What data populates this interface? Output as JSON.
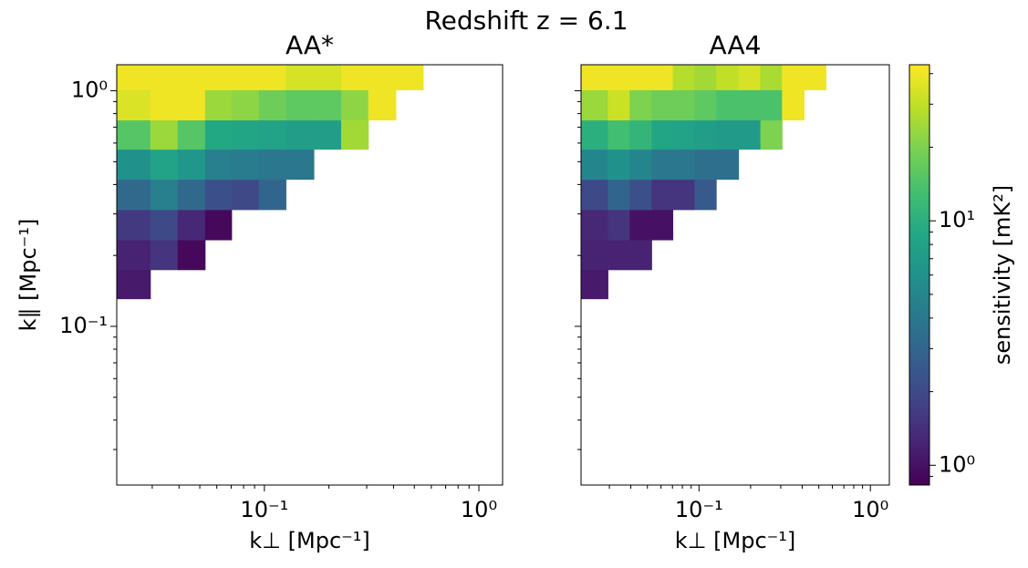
{
  "suptitle": "Redshift z = 6.1",
  "chart_data": [
    {
      "type": "heatmap",
      "title": "AA*",
      "xlabel": "k⊥ [Mpc⁻¹]",
      "ylabel": "k∥ [Mpc⁻¹]",
      "xscale": "log",
      "yscale": "log",
      "xlim": [
        0.0205,
        1.29
      ],
      "ylim": [
        0.0212,
        1.29
      ],
      "xticks": [
        {
          "value": 0.1,
          "label": "10⁻¹"
        },
        {
          "value": 1,
          "label": "10⁰"
        }
      ],
      "yticks": [
        {
          "value": 0.1,
          "label": "10⁻¹"
        },
        {
          "value": 1,
          "label": "10⁰"
        }
      ],
      "xminorticks": [
        0.03,
        0.04,
        0.05,
        0.06,
        0.07,
        0.08,
        0.09,
        0.2,
        0.3,
        0.4,
        0.5,
        0.6,
        0.7,
        0.8,
        0.9
      ],
      "yminorticks": [
        0.03,
        0.04,
        0.05,
        0.06,
        0.07,
        0.08,
        0.09,
        0.2,
        0.3,
        0.4,
        0.5,
        0.6,
        0.7,
        0.8,
        0.9
      ],
      "x_edges": [
        0.0205,
        0.0294,
        0.0394,
        0.0529,
        0.0703,
        0.0942,
        0.126,
        0.17,
        0.228,
        0.305,
        0.41,
        0.55
      ],
      "y_edges": [
        0.131,
        0.174,
        0.233,
        0.313,
        0.421,
        0.565,
        0.752,
        1.01,
        1.29
      ],
      "values": [
        [
          1.1,
          null,
          null,
          null,
          null,
          null,
          null,
          null,
          null,
          null,
          null
        ],
        [
          1.2,
          1.5,
          0.9,
          null,
          null,
          null,
          null,
          null,
          null,
          null,
          null
        ],
        [
          1.6,
          2,
          1.3,
          0.9,
          null,
          null,
          null,
          null,
          null,
          null,
          null
        ],
        [
          3.2,
          4.5,
          3.2,
          2.2,
          2,
          3,
          null,
          null,
          null,
          null,
          null
        ],
        [
          6,
          8,
          6.5,
          4.5,
          4.3,
          4,
          4,
          null,
          null,
          null,
          null
        ],
        [
          15,
          24,
          15,
          9,
          8.5,
          8,
          7.5,
          7.5,
          25,
          null,
          null
        ],
        [
          35,
          40,
          40,
          24,
          22,
          18,
          16,
          16,
          22,
          40,
          null
        ],
        [
          40,
          40,
          40,
          40,
          40,
          40,
          34,
          34,
          40,
          40,
          40
        ]
      ]
    },
    {
      "type": "heatmap",
      "title": "AA4",
      "xlabel": "k⊥ [Mpc⁻¹]",
      "xscale": "log",
      "yscale": "log",
      "xlim": [
        0.0205,
        1.29
      ],
      "ylim": [
        0.0212,
        1.29
      ],
      "xticks": [
        {
          "value": 0.1,
          "label": "10⁻¹"
        },
        {
          "value": 1,
          "label": "10⁰"
        }
      ],
      "yticks": [
        0.1,
        1
      ],
      "ytick_labels": false,
      "xminorticks": [
        0.03,
        0.04,
        0.05,
        0.06,
        0.07,
        0.08,
        0.09,
        0.2,
        0.3,
        0.4,
        0.5,
        0.6,
        0.7,
        0.8,
        0.9
      ],
      "yminorticks": [
        0.03,
        0.04,
        0.05,
        0.06,
        0.07,
        0.08,
        0.09,
        0.2,
        0.3,
        0.4,
        0.5,
        0.6,
        0.7,
        0.8,
        0.9
      ],
      "x_edges": [
        0.0205,
        0.0294,
        0.0394,
        0.0529,
        0.0703,
        0.0942,
        0.126,
        0.17,
        0.228,
        0.305,
        0.41,
        0.55
      ],
      "y_edges": [
        0.131,
        0.174,
        0.233,
        0.313,
        0.421,
        0.565,
        0.752,
        1.01,
        1.29
      ],
      "values": [
        [
          1.1,
          null,
          null,
          null,
          null,
          null,
          null,
          null,
          null,
          null,
          null
        ],
        [
          1.2,
          1.2,
          1.2,
          null,
          null,
          null,
          null,
          null,
          null,
          null,
          null
        ],
        [
          1.3,
          1.5,
          1,
          1,
          null,
          null,
          null,
          null,
          null,
          null,
          null
        ],
        [
          2,
          3,
          2.2,
          1.5,
          1.5,
          2.5,
          null,
          null,
          null,
          null,
          null
        ],
        [
          5,
          6,
          5,
          4,
          4,
          3.5,
          3.5,
          null,
          null,
          null,
          null
        ],
        [
          10,
          13,
          11,
          8.5,
          8,
          7.5,
          7,
          7,
          20,
          null,
          null
        ],
        [
          24,
          32,
          20,
          18,
          18,
          16,
          14,
          14,
          14,
          40,
          null
        ],
        [
          40,
          40,
          40,
          40,
          28,
          25,
          30,
          34,
          26,
          40,
          40
        ]
      ]
    }
  ],
  "colorbar": {
    "label": "sensitivity [mK²]",
    "scale": "log",
    "colormap": "viridis",
    "clim": [
      0.83,
      43.5
    ],
    "ticks": [
      {
        "value": 1,
        "label": "10⁰"
      },
      {
        "value": 10,
        "label": "10¹"
      }
    ],
    "minorticks": [
      0.9,
      2,
      3,
      4,
      5,
      6,
      7,
      8,
      9,
      20,
      30,
      40
    ]
  }
}
